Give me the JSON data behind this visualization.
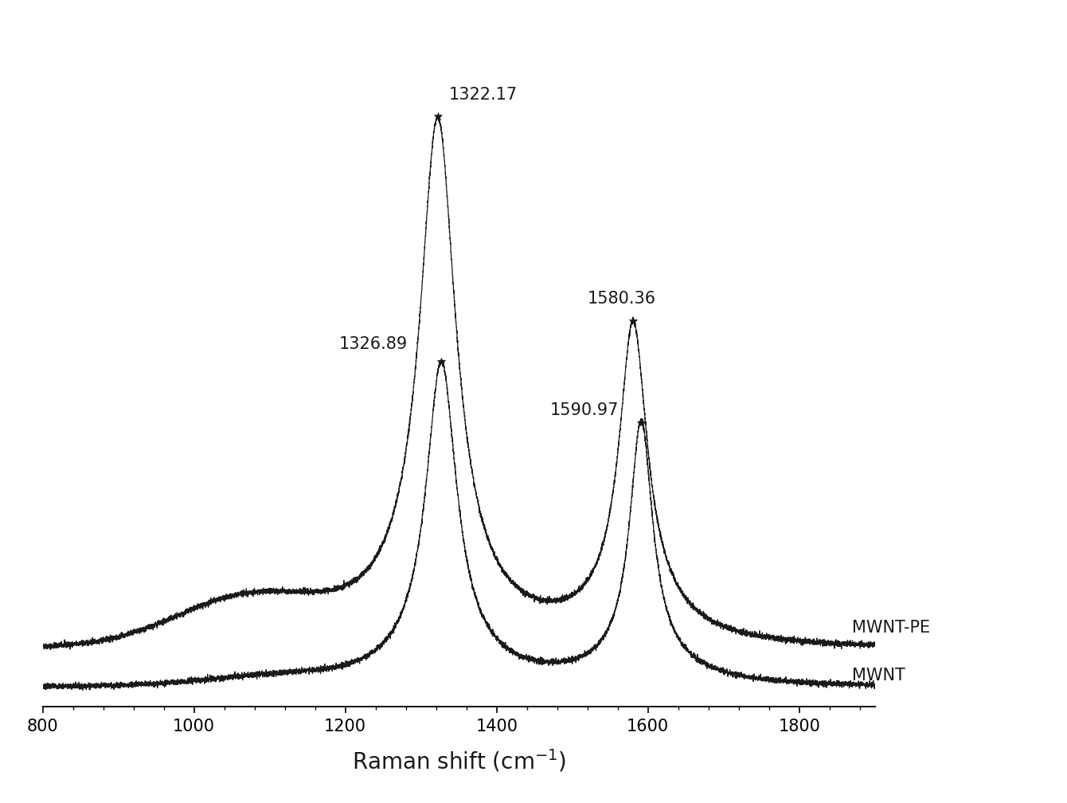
{
  "title": "",
  "xlabel": "Raman shift (cm$^{-1}$)",
  "xlabel_fontsize": 20,
  "xlim": [
    800,
    1900
  ],
  "xticks": [
    800,
    1000,
    1200,
    1400,
    1600,
    1800
  ],
  "background_color": "#ffffff",
  "line_color": "#1a1a1a",
  "labels": [
    "MWNT-PE",
    "MWNT"
  ],
  "peaks": {
    "mwnt_pe_D": 1322.17,
    "mwnt_D": 1326.89,
    "mwnt_pe_G": 1580.36,
    "mwnt_G": 1590.97
  },
  "annotation_fontsize": 15,
  "label_fontsize": 15
}
